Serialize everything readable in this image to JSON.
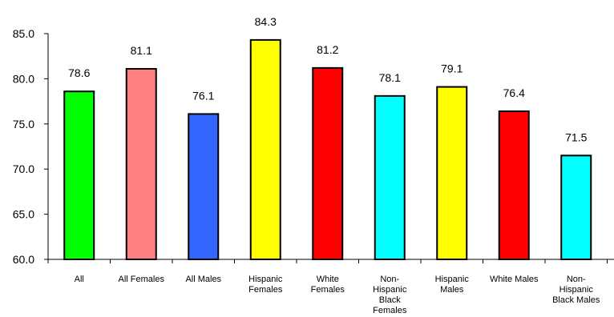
{
  "chart_data": {
    "type": "bar",
    "title": "",
    "xlabel": "",
    "ylabel": "",
    "ylim": [
      60.0,
      85.0
    ],
    "yticks": [
      "60.0",
      "65.0",
      "70.0",
      "75.0",
      "80.0",
      "85.0"
    ],
    "grid": false,
    "legend": "none",
    "categories": [
      "All",
      "All Females",
      "All Males",
      "Hispanic Females",
      "White Females",
      "Non-Hispanic Black Females",
      "Hispanic Males",
      "White Males",
      "Non-Hispanic Black Males"
    ],
    "category_lines": [
      [
        "All"
      ],
      [
        "All Females"
      ],
      [
        "All Males"
      ],
      [
        "Hispanic",
        "Females"
      ],
      [
        "White",
        "Females"
      ],
      [
        "Non-",
        "Hispanic",
        "Black",
        "Females"
      ],
      [
        "Hispanic",
        "Males"
      ],
      [
        "White Males"
      ],
      [
        "Non-",
        "Hispanic",
        "Black Males"
      ]
    ],
    "values": [
      78.6,
      81.1,
      76.1,
      84.3,
      81.2,
      78.1,
      79.1,
      76.4,
      71.5
    ],
    "value_labels": [
      "78.6",
      "81.1",
      "76.1",
      "84.3",
      "81.2",
      "78.1",
      "79.1",
      "76.4",
      "71.5"
    ],
    "colors": [
      "#00FF00",
      "#FF8080",
      "#3366FF",
      "#FFFF00",
      "#FF0000",
      "#00FFFF",
      "#FFFF00",
      "#FF0000",
      "#00FFFF"
    ]
  }
}
